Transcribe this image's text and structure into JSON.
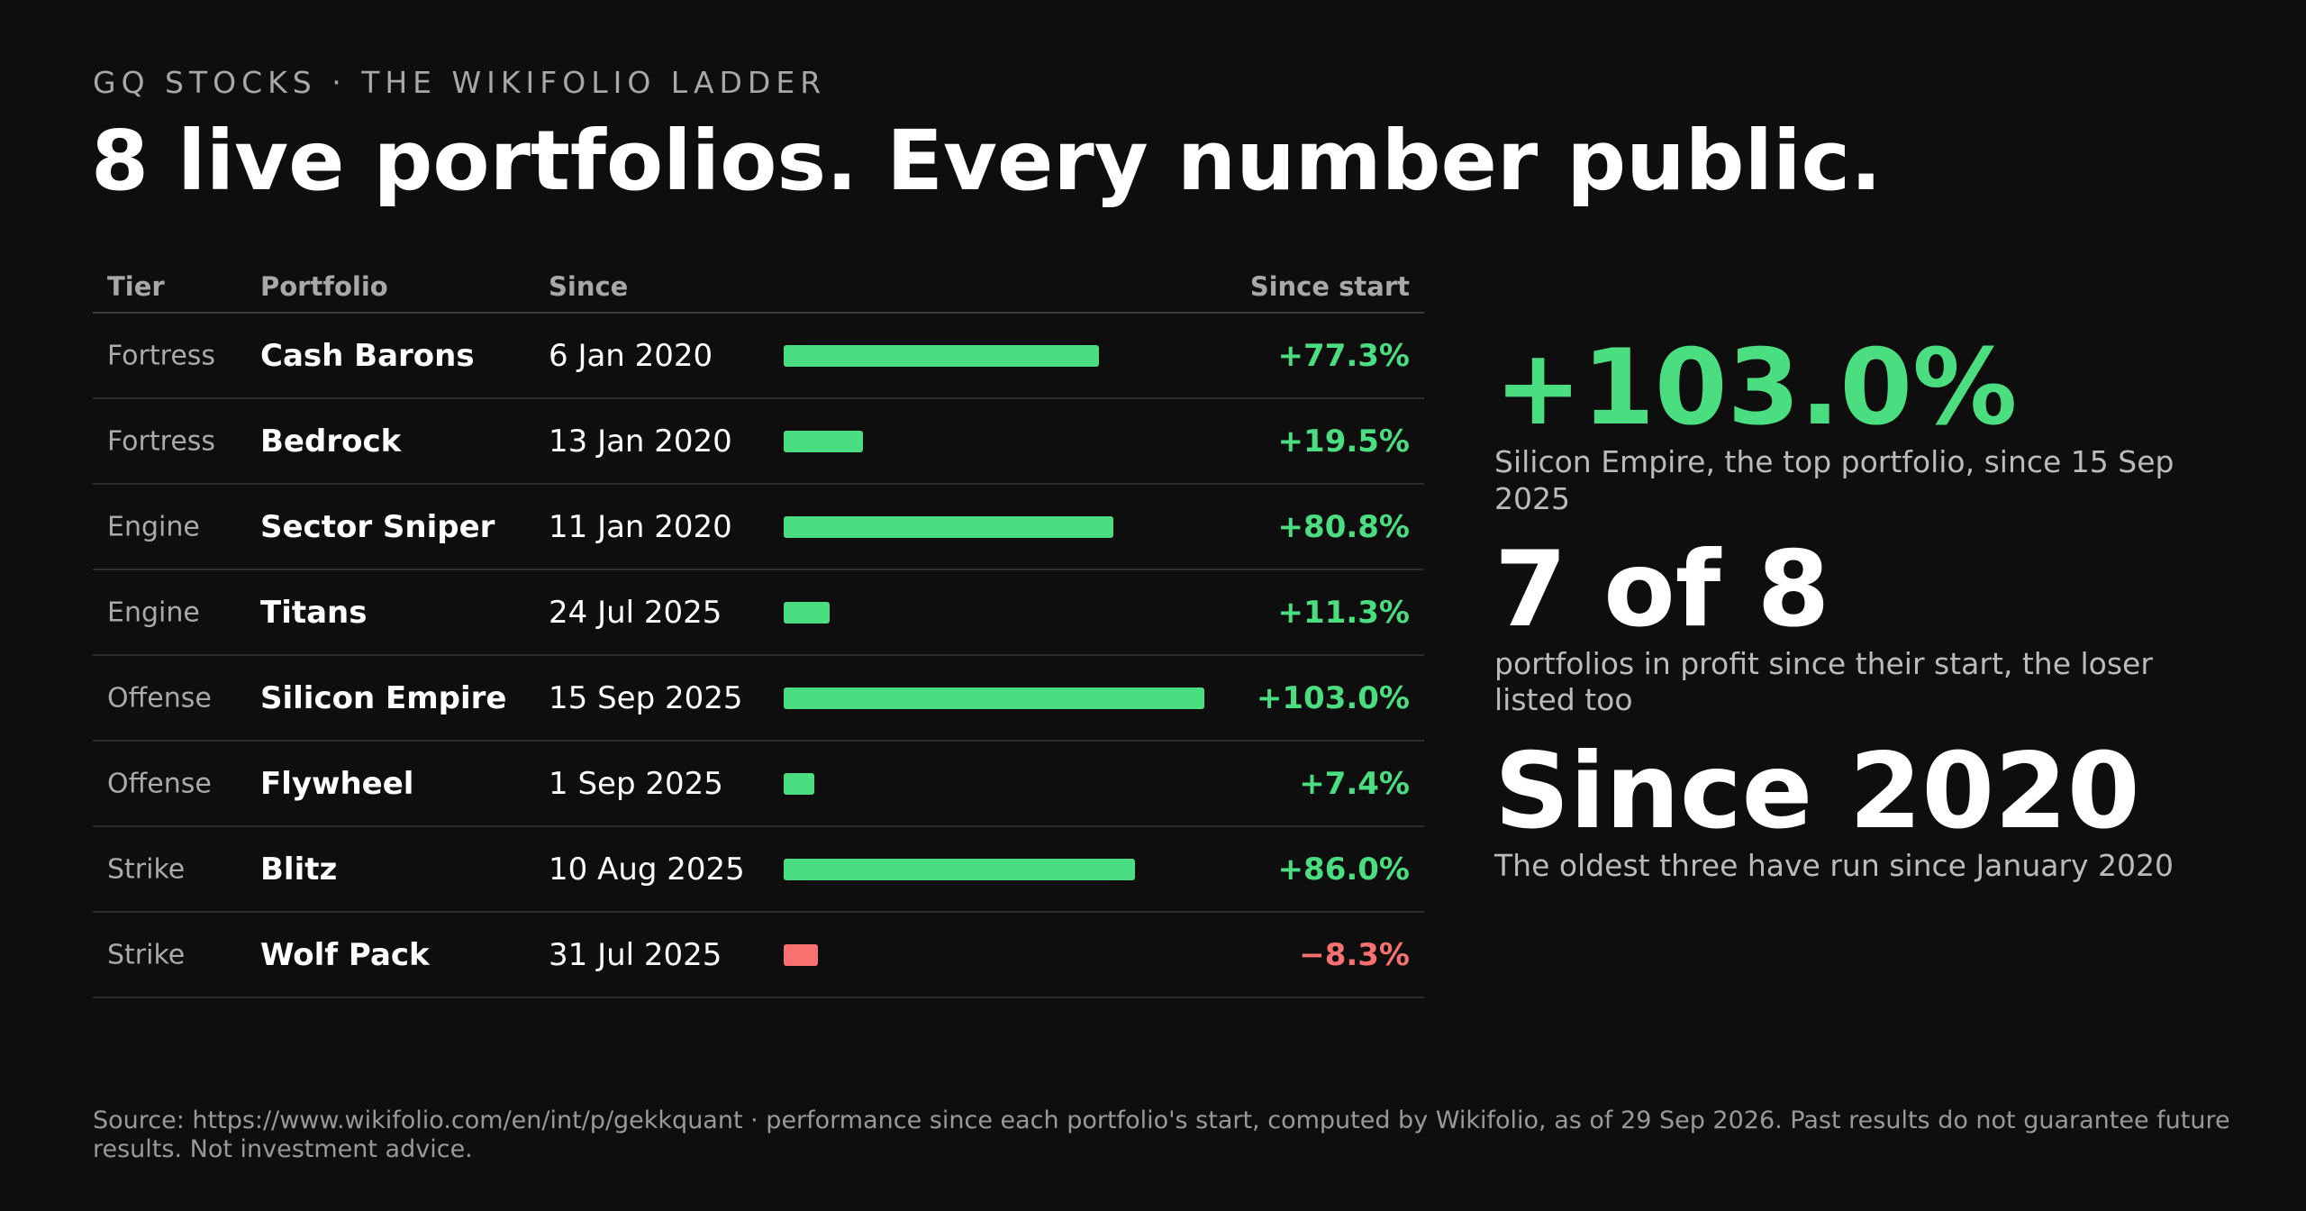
{
  "header": {
    "kicker": "GQ STOCKS · THE WIKIFOLIO LADDER",
    "title": "8 live portfolios. Every number public."
  },
  "table": {
    "columns": [
      "Tier",
      "Portfolio",
      "Since",
      "Since start"
    ],
    "rows": [
      {
        "tier": "Fortress",
        "portfolio": "Cash Barons",
        "since": "6 Jan 2020",
        "value": 77.3,
        "value_label": "+77.3%"
      },
      {
        "tier": "Fortress",
        "portfolio": "Bedrock",
        "since": "13 Jan 2020",
        "value": 19.5,
        "value_label": "+19.5%"
      },
      {
        "tier": "Engine",
        "portfolio": "Sector Sniper",
        "since": "11 Jan 2020",
        "value": 80.8,
        "value_label": "+80.8%"
      },
      {
        "tier": "Engine",
        "portfolio": "Titans",
        "since": "24 Jul 2025",
        "value": 11.3,
        "value_label": "+11.3%"
      },
      {
        "tier": "Offense",
        "portfolio": "Silicon Empire",
        "since": "15 Sep 2025",
        "value": 103.0,
        "value_label": "+103.0%"
      },
      {
        "tier": "Offense",
        "portfolio": "Flywheel",
        "since": "1 Sep 2025",
        "value": 7.4,
        "value_label": "+7.4%"
      },
      {
        "tier": "Strike",
        "portfolio": "Blitz",
        "since": "10 Aug 2025",
        "value": 86.0,
        "value_label": "+86.0%"
      },
      {
        "tier": "Strike",
        "portfolio": "Wolf Pack",
        "since": "31 Jul 2025",
        "value": -8.3,
        "value_label": "−8.3%"
      }
    ],
    "positive_color": "#4ade80",
    "negative_color": "#f87171"
  },
  "stats": [
    {
      "value": "+103.0%",
      "caption": "Silicon Empire, the top portfolio, since 15 Sep 2025",
      "color": "#4ade80"
    },
    {
      "value": "7 of 8",
      "caption": "portfolios in profit since their start, the loser listed too",
      "color": "#ffffff"
    },
    {
      "value": "Since 2020",
      "caption": "The oldest three have run since January 2020",
      "color": "#ffffff"
    }
  ],
  "footer": "Source: https://www.wikifolio.com/en/int/p/gekkquant · performance since each portfolio's start, computed by Wikifolio, as of 29 Sep 2026. Past results do not guarantee future results. Not investment advice."
}
